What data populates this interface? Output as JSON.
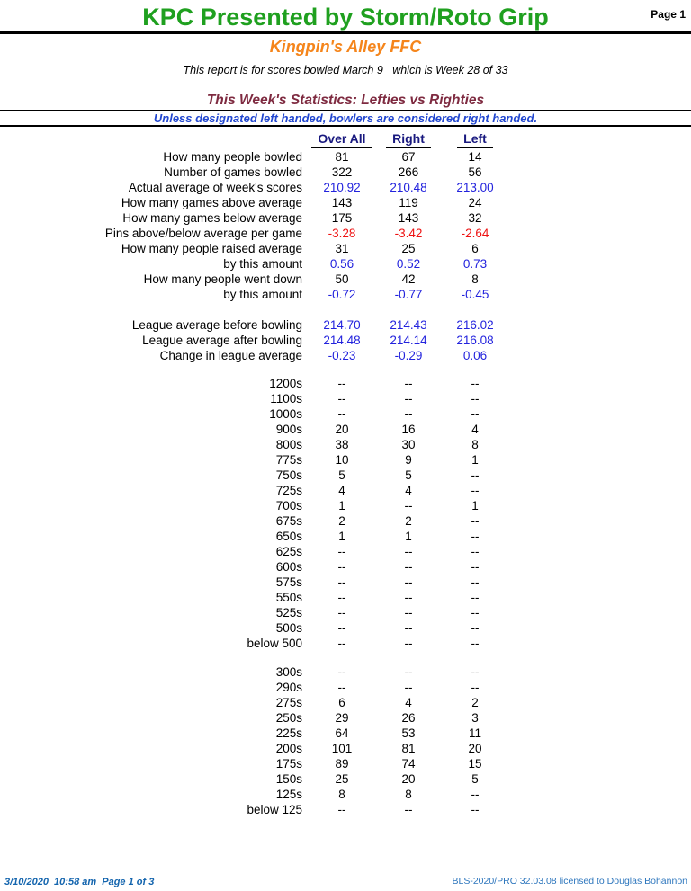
{
  "page": {
    "title": "KPC Presented by Storm/Roto Grip",
    "page_label": "Page 1",
    "center_name": "Kingpin's Alley FFC",
    "report_line": "This report is for scores bowled March 9   which is Week 28 of 33",
    "section_title": "This Week's Statistics: Lefties vs Righties",
    "notice": "Unless designated left handed, bowlers are considered right handed."
  },
  "colors": {
    "title_green": "#1FA01F",
    "center_orange": "#F5851B",
    "section_maroon": "#7E2A40",
    "notice_blue": "#2247D0",
    "header_navy": "#18187E",
    "data_blue": "#2222DD",
    "negative_red": "#EE1111",
    "footer_blue_bold": "#1465AE",
    "footer_blue_light": "#2D76BD"
  },
  "table": {
    "columns": [
      "Over All",
      "Right",
      "Left"
    ],
    "stat_rows": [
      {
        "label": "How many people bowled",
        "values": [
          "81",
          "67",
          "14"
        ],
        "color": "black"
      },
      {
        "label": "Number of games bowled",
        "values": [
          "322",
          "266",
          "56"
        ],
        "color": "black"
      },
      {
        "label": "Actual average of week's scores",
        "values": [
          "210.92",
          "210.48",
          "213.00"
        ],
        "color": "blue"
      },
      {
        "label": "How many games above average",
        "values": [
          "143",
          "119",
          "24"
        ],
        "color": "black"
      },
      {
        "label": "How many games below average",
        "values": [
          "175",
          "143",
          "32"
        ],
        "color": "black"
      },
      {
        "label": "Pins above/below average per game",
        "values": [
          "-3.28",
          "-3.42",
          "-2.64"
        ],
        "color": "red"
      },
      {
        "label": "How many people raised average",
        "values": [
          "31",
          "25",
          "6"
        ],
        "color": "black"
      },
      {
        "label": "by this amount",
        "values": [
          "0.56",
          "0.52",
          "0.73"
        ],
        "color": "blue"
      },
      {
        "label": "How many people went down",
        "values": [
          "50",
          "42",
          "8"
        ],
        "color": "black"
      },
      {
        "label": "by this amount",
        "values": [
          "-0.72",
          "-0.77",
          "-0.45"
        ],
        "color": "blue"
      }
    ],
    "league_rows": [
      {
        "label": "League average before bowling",
        "values": [
          "214.70",
          "214.43",
          "216.02"
        ],
        "color": "blue"
      },
      {
        "label": "League average after bowling",
        "values": [
          "214.48",
          "214.14",
          "216.08"
        ],
        "color": "blue"
      },
      {
        "label": "Change in league average",
        "values": [
          "-0.23",
          "-0.29",
          "0.06"
        ],
        "color": "blue"
      }
    ],
    "series_rows": [
      {
        "label": "1200s",
        "values": [
          "--",
          "--",
          "--"
        ],
        "color": "black"
      },
      {
        "label": "1100s",
        "values": [
          "--",
          "--",
          "--"
        ],
        "color": "black"
      },
      {
        "label": "1000s",
        "values": [
          "--",
          "--",
          "--"
        ],
        "color": "black"
      },
      {
        "label": "900s",
        "values": [
          "20",
          "16",
          "4"
        ],
        "color": "black"
      },
      {
        "label": "800s",
        "values": [
          "38",
          "30",
          "8"
        ],
        "color": "black"
      },
      {
        "label": "775s",
        "values": [
          "10",
          "9",
          "1"
        ],
        "color": "black"
      },
      {
        "label": "750s",
        "values": [
          "5",
          "5",
          "--"
        ],
        "color": "black"
      },
      {
        "label": "725s",
        "values": [
          "4",
          "4",
          "--"
        ],
        "color": "black"
      },
      {
        "label": "700s",
        "values": [
          "1",
          "--",
          "1"
        ],
        "color": "black"
      },
      {
        "label": "675s",
        "values": [
          "2",
          "2",
          "--"
        ],
        "color": "black"
      },
      {
        "label": "650s",
        "values": [
          "1",
          "1",
          "--"
        ],
        "color": "black"
      },
      {
        "label": "625s",
        "values": [
          "--",
          "--",
          "--"
        ],
        "color": "black"
      },
      {
        "label": "600s",
        "values": [
          "--",
          "--",
          "--"
        ],
        "color": "black"
      },
      {
        "label": "575s",
        "values": [
          "--",
          "--",
          "--"
        ],
        "color": "black"
      },
      {
        "label": "550s",
        "values": [
          "--",
          "--",
          "--"
        ],
        "color": "black"
      },
      {
        "label": "525s",
        "values": [
          "--",
          "--",
          "--"
        ],
        "color": "black"
      },
      {
        "label": "500s",
        "values": [
          "--",
          "--",
          "--"
        ],
        "color": "black"
      },
      {
        "label": "below 500",
        "values": [
          "--",
          "--",
          "--"
        ],
        "color": "black"
      }
    ],
    "game_rows": [
      {
        "label": "300s",
        "values": [
          "--",
          "--",
          "--"
        ],
        "color": "black"
      },
      {
        "label": "290s",
        "values": [
          "--",
          "--",
          "--"
        ],
        "color": "black"
      },
      {
        "label": "275s",
        "values": [
          "6",
          "4",
          "2"
        ],
        "color": "black"
      },
      {
        "label": "250s",
        "values": [
          "29",
          "26",
          "3"
        ],
        "color": "black"
      },
      {
        "label": "225s",
        "values": [
          "64",
          "53",
          "11"
        ],
        "color": "black"
      },
      {
        "label": "200s",
        "values": [
          "101",
          "81",
          "20"
        ],
        "color": "black"
      },
      {
        "label": "175s",
        "values": [
          "89",
          "74",
          "15"
        ],
        "color": "black"
      },
      {
        "label": "150s",
        "values": [
          "25",
          "20",
          "5"
        ],
        "color": "black"
      },
      {
        "label": "125s",
        "values": [
          "8",
          "8",
          "--"
        ],
        "color": "black"
      },
      {
        "label": "below 125",
        "values": [
          "--",
          "--",
          "--"
        ],
        "color": "black"
      }
    ]
  },
  "footer": {
    "left": "3/10/2020  10:58 am  Page 1 of 3",
    "right": "BLS-2020/PRO 32.03.08 licensed to Douglas Bohannon"
  }
}
